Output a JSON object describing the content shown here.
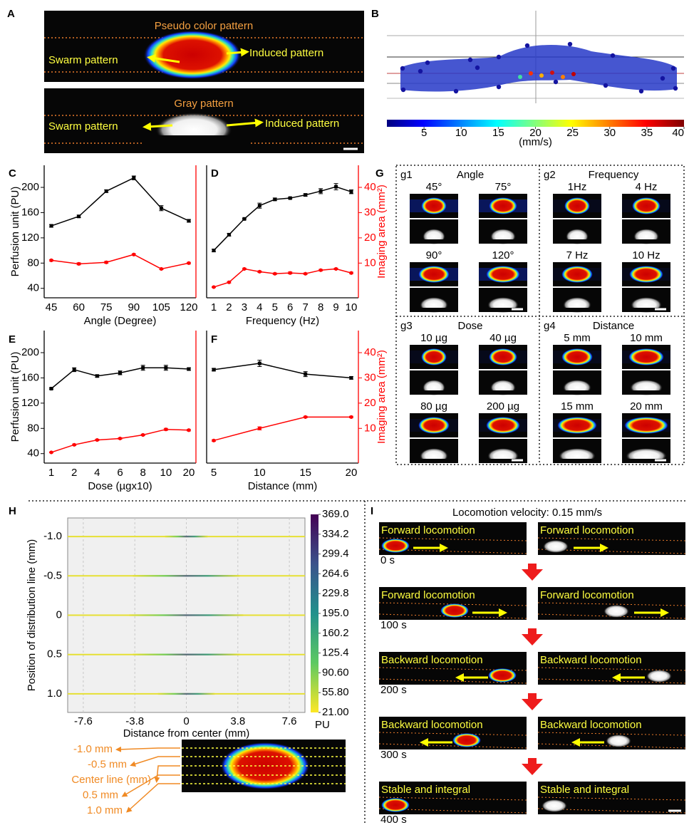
{
  "panels": [
    "A",
    "B",
    "C",
    "D",
    "E",
    "F",
    "G",
    "H",
    "I"
  ],
  "panel_a": {
    "pseudo": {
      "title": "Pseudo color pattern",
      "left": "Swarm pattern",
      "right": "Induced pattern"
    },
    "gray": {
      "title": "Gray pattern",
      "left": "Swarm pattern",
      "right": "Induced pattern"
    }
  },
  "panel_g": {
    "groups": [
      {
        "tag": "g1",
        "title": "Angle",
        "items": [
          "45°",
          "75°",
          "90°",
          "120°"
        ]
      },
      {
        "tag": "g2",
        "title": "Frequency",
        "items": [
          "1Hz",
          "4 Hz",
          "7 Hz",
          "10 Hz"
        ]
      },
      {
        "tag": "g3",
        "title": "Dose",
        "items": [
          "10 µg",
          "40 µg",
          "80 µg",
          "200 µg"
        ]
      },
      {
        "tag": "g4",
        "title": "Distance",
        "items": [
          "5 mm",
          "10 mm",
          "15 mm",
          "20 mm"
        ]
      }
    ]
  },
  "panel_h": {
    "image_labels": [
      "-1.0 mm",
      "-0.5 mm",
      "Center line (mm)",
      "0.5 mm",
      "1.0 mm"
    ]
  },
  "panel_i": {
    "title": "Locomotion velocity: 0.15 mm/s",
    "rows": [
      {
        "label": "Forward locomotion",
        "time": "0 s"
      },
      {
        "label": "Forward locomotion",
        "time": "100 s"
      },
      {
        "label": "Backward locomotion",
        "time": "200 s"
      },
      {
        "label": "Backward locomotion",
        "time": "300 s"
      },
      {
        "label": "Stable and integral",
        "time": "400 s"
      }
    ]
  },
  "chart_data": [
    {
      "type": "line",
      "categories": [
        "45",
        "60",
        "75",
        "90",
        "105",
        "120"
      ],
      "xlabel": "Angle (Degree)",
      "ylabel": "Perfusion unit (PU)",
      "ylim": [
        25,
        235
      ],
      "yticks": [
        40,
        80,
        120,
        160,
        200
      ],
      "y2lim": [
        -3.75,
        48.75
      ],
      "series": [
        {
          "color": "#000000",
          "values": [
            139,
            154,
            194,
            215,
            167,
            147
          ],
          "errors": [
            2,
            2,
            2,
            3,
            4,
            2
          ]
        },
        {
          "color": "#ff0000",
          "axis": "y2",
          "values": [
            11.1,
            9.7,
            10.3,
            13.4,
            7.7,
            10.0
          ],
          "errors": [
            0.3,
            0.4,
            0.4,
            0.3,
            0.3,
            0.3
          ]
        }
      ]
    },
    {
      "type": "line",
      "categories": [
        "1",
        "2",
        "3",
        "4",
        "5",
        "6",
        "7",
        "8",
        "9",
        "10"
      ],
      "xlabel": "Frequency (Hz)",
      "y2label": "Imaging area (mm²)",
      "ylim": [
        25,
        235
      ],
      "y2lim": [
        -3.75,
        48.75
      ],
      "y2ticks": [
        10,
        20,
        30,
        40
      ],
      "series": [
        {
          "color": "#000000",
          "values": [
            100,
            125,
            150,
            171,
            181,
            183,
            188,
            194,
            201,
            193
          ],
          "errors": [
            2,
            2,
            1,
            4,
            2,
            1,
            2,
            4,
            5,
            3
          ]
        },
        {
          "color": "#ff0000",
          "axis": "y2",
          "values": [
            0.5,
            2.4,
            7.7,
            6.6,
            5.8,
            6.1,
            5.8,
            7.2,
            7.7,
            6.1
          ],
          "errors": [
            0.2,
            0.3,
            0.3,
            0.3,
            0.3,
            0.4,
            0.3,
            0.3,
            0.3,
            0.3
          ]
        }
      ]
    },
    {
      "type": "line",
      "categories": [
        "1",
        "2",
        "4",
        "6",
        "8",
        "10",
        "20"
      ],
      "xlabel": "Dose (µgx10)",
      "ylabel": "Perfusion unit (PU)",
      "ylim": [
        25,
        235
      ],
      "yticks": [
        40,
        80,
        120,
        160,
        200
      ],
      "y2lim": [
        -3.75,
        48.75
      ],
      "series": [
        {
          "color": "#000000",
          "values": [
            143,
            173,
            163,
            168,
            176,
            176,
            174
          ],
          "errors": [
            1,
            3,
            2,
            3,
            4,
            4,
            2
          ]
        },
        {
          "color": "#ff0000",
          "axis": "y2",
          "values": [
            0.5,
            3.5,
            5.4,
            6.0,
            7.4,
            9.6,
            9.3
          ],
          "errors": [
            0.2,
            0.3,
            0.3,
            0.3,
            0.3,
            0.4,
            0.3
          ]
        }
      ]
    },
    {
      "type": "line",
      "categories": [
        "5",
        "10",
        "15",
        "20"
      ],
      "xlabel": "Distance (mm)",
      "y2label": "Imaging area (mm²)",
      "ylim": [
        25,
        235
      ],
      "y2lim": [
        -3.75,
        48.75
      ],
      "y2ticks": [
        10,
        20,
        30,
        40
      ],
      "series": [
        {
          "color": "#000000",
          "values": [
            173,
            183,
            166,
            160
          ],
          "errors": [
            2,
            5,
            4,
            2
          ]
        },
        {
          "color": "#ff0000",
          "axis": "y2",
          "values": [
            5.2,
            10,
            14.5,
            14.5
          ],
          "errors": [
            0.3,
            0.6,
            0.3,
            0.3
          ]
        }
      ]
    },
    {
      "type": "profile",
      "xlabel": "Distance from center (mm)",
      "ylabel": "Position of distribution line (mm)",
      "xlim": [
        -8.75,
        8.75
      ],
      "xticks": [
        -7.6,
        -3.8,
        0,
        3.8,
        7.6
      ],
      "ylim": [
        -1.236,
        1.236
      ],
      "y_inverted": true,
      "yticks": [
        {
          "value": -1,
          "label": "-1.0"
        },
        -0.5,
        0,
        0.5,
        {
          "value": 1,
          "label": "1.0"
        }
      ],
      "grid": true,
      "colorbar": {
        "label": "PU",
        "clim": [
          21,
          369
        ],
        "ticks": [
          {
            "value": 369,
            "label": "369.0"
          },
          334.2,
          299.4,
          264.6,
          229.8,
          {
            "value": 195,
            "label": "195.0"
          },
          160.2,
          125.4,
          {
            "value": 90.6,
            "label": "90.60"
          },
          {
            "value": 55.8,
            "label": "55.80"
          },
          {
            "value": 21,
            "label": "21.00"
          }
        ]
      }
    },
    {
      "type": "trajectory",
      "colorbar": {
        "label": "(mm/s)",
        "clim": [
          0,
          40
        ],
        "ticks": [
          5,
          10,
          15,
          20,
          25,
          30,
          35,
          40
        ]
      }
    }
  ]
}
